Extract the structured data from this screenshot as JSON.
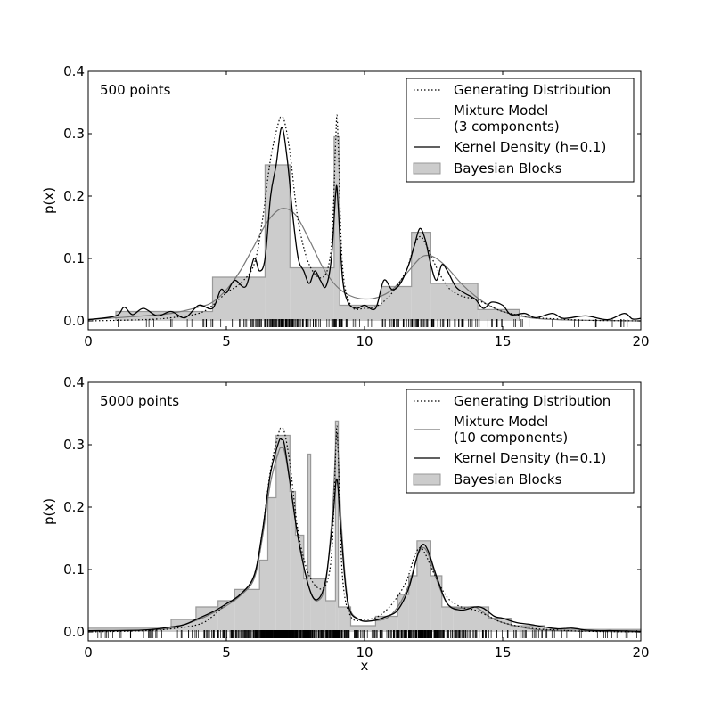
{
  "chart_data": [
    {
      "type": "area",
      "annotation": "500 points",
      "xlabel": "",
      "ylabel": "p(x)",
      "xlim": [
        0,
        20
      ],
      "ylim": [
        0,
        0.4
      ],
      "xticks": [
        "0",
        "5",
        "10",
        "15",
        "20"
      ],
      "yticks": [
        "0.0",
        "0.1",
        "0.2",
        "0.3",
        "0.4"
      ],
      "legend_position": "top-right",
      "legend": [
        "Generating Distribution",
        "Mixture Model",
        "(3 components)",
        "Kernel Density (h=0.1)",
        "Bayesian Blocks"
      ],
      "bayesian_blocks": {
        "edges": [
          1.0,
          4.5,
          6.4,
          7.3,
          8.9,
          9.1,
          10.6,
          11.7,
          12.4,
          14.1,
          15.6
        ],
        "heights": [
          0.015,
          0.07,
          0.25,
          0.085,
          0.295,
          0.025,
          0.055,
          0.142,
          0.06,
          0.018
        ]
      },
      "generating_distribution": {
        "x": [
          0,
          2,
          3,
          4,
          4.5,
          5,
          5.5,
          6,
          6.3,
          6.6,
          6.9,
          7.0,
          7.1,
          7.3,
          7.6,
          8.0,
          8.5,
          8.8,
          8.95,
          9.0,
          9.05,
          9.2,
          9.5,
          10,
          10.5,
          11,
          11.5,
          11.8,
          12.0,
          12.2,
          12.5,
          13,
          13.5,
          14,
          14.5,
          15,
          16,
          17,
          18,
          20
        ],
        "y": [
          0.0,
          0.002,
          0.005,
          0.012,
          0.025,
          0.045,
          0.06,
          0.09,
          0.16,
          0.26,
          0.32,
          0.325,
          0.32,
          0.27,
          0.16,
          0.09,
          0.07,
          0.12,
          0.28,
          0.33,
          0.28,
          0.09,
          0.025,
          0.02,
          0.025,
          0.045,
          0.08,
          0.12,
          0.135,
          0.125,
          0.095,
          0.055,
          0.04,
          0.035,
          0.025,
          0.015,
          0.006,
          0.003,
          0.001,
          0.0
        ]
      },
      "mixture_model": {
        "x": [
          0,
          2,
          3,
          4,
          4.5,
          5,
          5.5,
          6,
          6.5,
          7.0,
          7.5,
          8.0,
          8.5,
          9.0,
          9.5,
          10.0,
          10.5,
          11.0,
          11.5,
          12.0,
          12.3,
          12.6,
          13.0,
          13.5,
          14.0,
          14.5,
          15.0,
          16.0,
          17.0,
          18,
          20
        ],
        "y": [
          0.002,
          0.008,
          0.012,
          0.022,
          0.03,
          0.05,
          0.08,
          0.12,
          0.16,
          0.18,
          0.17,
          0.13,
          0.085,
          0.055,
          0.04,
          0.035,
          0.038,
          0.05,
          0.075,
          0.1,
          0.105,
          0.1,
          0.085,
          0.06,
          0.04,
          0.025,
          0.015,
          0.005,
          0.002,
          0.001,
          0.0
        ]
      },
      "kernel_density": {
        "x": [
          0,
          1.0,
          1.3,
          1.6,
          2.0,
          2.5,
          3.0,
          3.5,
          4.0,
          4.5,
          4.8,
          5.0,
          5.3,
          5.7,
          6.0,
          6.2,
          6.4,
          6.6,
          6.8,
          7.0,
          7.2,
          7.4,
          7.6,
          7.8,
          8.0,
          8.2,
          8.4,
          8.6,
          8.8,
          8.95,
          9.0,
          9.05,
          9.2,
          9.4,
          9.7,
          10.0,
          10.4,
          10.7,
          11.0,
          11.3,
          11.6,
          11.8,
          12.0,
          12.2,
          12.4,
          12.6,
          12.8,
          13.0,
          13.3,
          13.6,
          14.0,
          14.3,
          14.6,
          15.0,
          15.3,
          15.8,
          16.2,
          16.8,
          17.2,
          18.0,
          18.8,
          19.4,
          19.7,
          20
        ],
        "y": [
          0.002,
          0.008,
          0.022,
          0.01,
          0.02,
          0.008,
          0.015,
          0.005,
          0.025,
          0.02,
          0.05,
          0.045,
          0.065,
          0.055,
          0.1,
          0.08,
          0.1,
          0.2,
          0.25,
          0.31,
          0.26,
          0.17,
          0.1,
          0.08,
          0.06,
          0.08,
          0.065,
          0.055,
          0.1,
          0.2,
          0.215,
          0.18,
          0.07,
          0.03,
          0.02,
          0.025,
          0.02,
          0.065,
          0.05,
          0.06,
          0.09,
          0.12,
          0.148,
          0.13,
          0.09,
          0.065,
          0.09,
          0.08,
          0.055,
          0.045,
          0.035,
          0.02,
          0.03,
          0.025,
          0.01,
          0.012,
          0.005,
          0.012,
          0.004,
          0.008,
          0.002,
          0.012,
          0.003,
          0.004
        ]
      },
      "rug_range": [
        1.0,
        19.8
      ]
    },
    {
      "type": "area",
      "annotation": "5000 points",
      "xlabel": "x",
      "ylabel": "p(x)",
      "xlim": [
        0,
        20
      ],
      "ylim": [
        0,
        0.4
      ],
      "xticks": [
        "0",
        "5",
        "10",
        "15",
        "20"
      ],
      "yticks": [
        "0.0",
        "0.1",
        "0.2",
        "0.3",
        "0.4"
      ],
      "legend_position": "top-right",
      "legend": [
        "Generating Distribution",
        "Mixture Model",
        "(10 components)",
        "Kernel Density (h=0.1)",
        "Bayesian Blocks"
      ],
      "bayesian_blocks": {
        "edges": [
          0.0,
          3.0,
          3.9,
          4.7,
          5.3,
          6.2,
          6.5,
          6.8,
          7.3,
          7.5,
          7.8,
          7.95,
          8.05,
          8.6,
          8.95,
          9.05,
          9.5,
          10.4,
          11.2,
          11.6,
          11.9,
          12.4,
          12.8,
          13.2,
          14.5,
          15.3,
          16.5,
          20.0
        ],
        "heights": [
          0.006,
          0.02,
          0.04,
          0.05,
          0.068,
          0.115,
          0.215,
          0.315,
          0.225,
          0.155,
          0.085,
          0.285,
          0.085,
          0.05,
          0.338,
          0.04,
          0.01,
          0.025,
          0.06,
          0.09,
          0.146,
          0.09,
          0.04,
          0.04,
          0.022,
          0.01,
          0.004
        ]
      },
      "generating_distribution": {
        "x": [
          0,
          2,
          3,
          4,
          4.5,
          5,
          5.5,
          6,
          6.3,
          6.6,
          6.9,
          7.0,
          7.1,
          7.3,
          7.6,
          8.0,
          8.5,
          8.8,
          8.95,
          9.0,
          9.05,
          9.2,
          9.5,
          10,
          10.5,
          11,
          11.5,
          11.8,
          12.0,
          12.2,
          12.5,
          13,
          13.5,
          14,
          14.5,
          15,
          16,
          17,
          18,
          20
        ],
        "y": [
          0.0,
          0.002,
          0.005,
          0.012,
          0.025,
          0.045,
          0.06,
          0.09,
          0.16,
          0.26,
          0.32,
          0.325,
          0.32,
          0.27,
          0.16,
          0.09,
          0.07,
          0.12,
          0.28,
          0.33,
          0.28,
          0.09,
          0.025,
          0.02,
          0.025,
          0.045,
          0.08,
          0.12,
          0.135,
          0.125,
          0.095,
          0.055,
          0.04,
          0.035,
          0.025,
          0.015,
          0.006,
          0.003,
          0.001,
          0.0
        ]
      },
      "mixture_model": {
        "x": [
          0,
          2,
          3,
          4,
          4.5,
          5,
          5.5,
          6,
          6.3,
          6.6,
          6.9,
          7.0,
          7.1,
          7.3,
          7.6,
          8.0,
          8.3,
          8.6,
          8.85,
          9.0,
          9.15,
          9.4,
          9.8,
          10.3,
          10.8,
          11.2,
          11.6,
          11.9,
          12.1,
          12.3,
          12.6,
          13.0,
          13.5,
          14.0,
          14.5,
          15.0,
          16.0,
          17.0,
          20
        ],
        "y": [
          0.001,
          0.003,
          0.006,
          0.02,
          0.03,
          0.042,
          0.058,
          0.085,
          0.15,
          0.24,
          0.29,
          0.295,
          0.29,
          0.24,
          0.15,
          0.07,
          0.05,
          0.08,
          0.2,
          0.32,
          0.18,
          0.05,
          0.02,
          0.018,
          0.022,
          0.04,
          0.075,
          0.12,
          0.135,
          0.125,
          0.085,
          0.045,
          0.038,
          0.04,
          0.025,
          0.015,
          0.005,
          0.002,
          0.0
        ]
      },
      "kernel_density": {
        "x": [
          0,
          2,
          3,
          3.5,
          4.0,
          4.5,
          5.0,
          5.5,
          6.0,
          6.3,
          6.6,
          6.9,
          7.0,
          7.1,
          7.3,
          7.6,
          8.0,
          8.3,
          8.6,
          8.85,
          9.0,
          9.15,
          9.4,
          9.8,
          10.3,
          10.8,
          11.2,
          11.6,
          11.9,
          12.1,
          12.3,
          12.6,
          13.0,
          13.5,
          14.0,
          14.3,
          14.7,
          15.0,
          15.5,
          16.0,
          16.5,
          17.0,
          17.5,
          18.0,
          18.5,
          19.0,
          20
        ],
        "y": [
          0.002,
          0.003,
          0.008,
          0.012,
          0.022,
          0.032,
          0.045,
          0.06,
          0.09,
          0.16,
          0.255,
          0.305,
          0.308,
          0.3,
          0.24,
          0.15,
          0.07,
          0.052,
          0.085,
          0.18,
          0.245,
          0.16,
          0.045,
          0.02,
          0.018,
          0.025,
          0.035,
          0.07,
          0.12,
          0.14,
          0.13,
          0.09,
          0.045,
          0.035,
          0.04,
          0.038,
          0.025,
          0.022,
          0.015,
          0.012,
          0.008,
          0.005,
          0.006,
          0.003,
          0.002,
          0.002,
          0.001
        ]
      },
      "rug_range": [
        0.0,
        20.0
      ]
    }
  ]
}
